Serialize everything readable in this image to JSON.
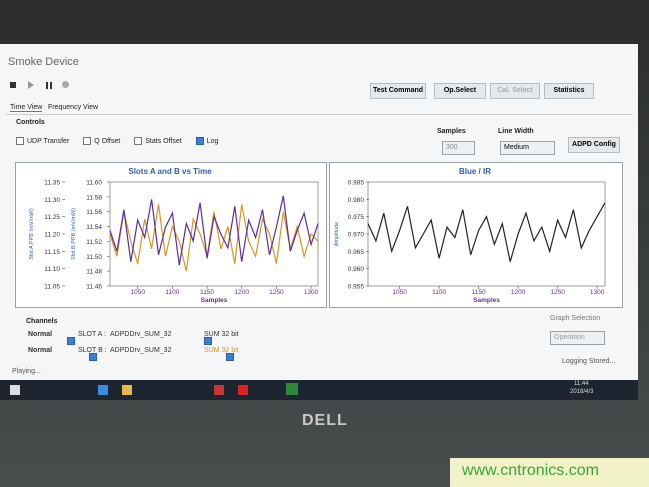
{
  "window": {
    "title": "Smoke Device",
    "buttons": [
      "Test Command",
      "Op.Select",
      "Cal. Select",
      "Statistics"
    ],
    "tabs": [
      "Time View",
      "Frequency View"
    ]
  },
  "controls": {
    "title": "Controls",
    "checkboxes": [
      {
        "label": "UDP Transfer",
        "checked": false
      },
      {
        "label": "Q Offset",
        "checked": false
      },
      {
        "label": "Stats Offset",
        "checked": false
      },
      {
        "label": "Log",
        "checked": true
      }
    ],
    "samples_label": "Samples",
    "samples_value": 300,
    "line_width_label": "Line Width",
    "line_width_value": "Medium",
    "config_button": "ADPD Config"
  },
  "chart_data": [
    {
      "type": "line",
      "title": "Slots A and B vs Time",
      "xlabel": "Samples",
      "ylabel": "Slot A PPB (mV/mW)",
      "y2label": "Slot B PPB (mV/mW)",
      "x": [
        1010,
        1020,
        1030,
        1040,
        1050,
        1060,
        1070,
        1080,
        1090,
        1100,
        1110,
        1120,
        1130,
        1140,
        1150,
        1160,
        1170,
        1180,
        1190,
        1200,
        1210,
        1220,
        1230,
        1240,
        1250,
        1260,
        1270,
        1280,
        1290,
        1300,
        1310
      ],
      "xlim": [
        1010,
        1310
      ],
      "xticks": [
        1050,
        1100,
        1150,
        1200,
        1250,
        1300
      ],
      "ylim": [
        11.05,
        11.35
      ],
      "yticks": [
        11.05,
        {
          "value": 11.1,
          "label": "11.10"
        },
        11.15,
        {
          "value": 11.2,
          "label": "11.20"
        },
        11.25,
        {
          "value": 11.3,
          "label": "11.30"
        },
        11.35
      ],
      "y2lim": [
        11.46,
        11.6
      ],
      "y2ticks": [
        11.46,
        11.48,
        {
          "value": 11.5,
          "label": "11.50"
        },
        11.52,
        11.54,
        11.56,
        11.58,
        {
          "value": 11.6,
          "label": "11.60"
        }
      ],
      "series": [
        {
          "color": "#d9961f",
          "axis": "y2",
          "values": [
            11.53,
            11.5,
            11.56,
            11.52,
            11.49,
            11.55,
            11.51,
            11.57,
            11.5,
            11.54,
            11.52,
            11.48,
            11.55,
            11.53,
            11.5,
            11.56,
            11.51,
            11.54,
            11.49,
            11.57,
            11.52,
            11.5,
            11.55,
            11.53,
            11.49,
            11.56,
            11.51,
            11.54,
            11.5,
            11.53,
            11.52
          ]
        },
        {
          "color": "#5a2ca0",
          "values": [
            11.21,
            11.15,
            11.27,
            11.12,
            11.24,
            11.19,
            11.3,
            11.14,
            11.22,
            11.26,
            11.11,
            11.23,
            11.18,
            11.29,
            11.13,
            11.25,
            11.2,
            11.16,
            11.28,
            11.12,
            11.24,
            11.19,
            11.27,
            11.14,
            11.22,
            11.31,
            11.15,
            11.21,
            11.26,
            11.17,
            11.23
          ]
        }
      ]
    },
    {
      "type": "line",
      "title": "Blue / IR",
      "xlabel": "Samples",
      "ylabel": "Amplitude",
      "x": [
        1010,
        1020,
        1030,
        1040,
        1050,
        1060,
        1070,
        1080,
        1090,
        1100,
        1110,
        1120,
        1130,
        1140,
        1150,
        1160,
        1170,
        1180,
        1190,
        1200,
        1210,
        1220,
        1230,
        1240,
        1250,
        1260,
        1270,
        1280,
        1290,
        1300,
        1310
      ],
      "xlim": [
        1010,
        1310
      ],
      "xticks": [
        1050,
        1100,
        1150,
        1200,
        1250,
        1300
      ],
      "ylim": [
        0.955,
        0.985
      ],
      "yticks": [
        0.955,
        {
          "value": 0.96,
          "label": "0.960"
        },
        0.965,
        {
          "value": 0.97,
          "label": "0.970"
        },
        0.975,
        {
          "value": 0.98,
          "label": "0.980"
        },
        0.985
      ],
      "series": [
        {
          "color": "#222222",
          "values": [
            0.973,
            0.968,
            0.976,
            0.965,
            0.971,
            0.978,
            0.966,
            0.97,
            0.974,
            0.963,
            0.972,
            0.969,
            0.977,
            0.964,
            0.971,
            0.975,
            0.967,
            0.973,
            0.962,
            0.97,
            0.976,
            0.968,
            0.972,
            0.965,
            0.974,
            0.969,
            0.977,
            0.966,
            0.971,
            0.975,
            0.979
          ]
        }
      ]
    }
  ],
  "channels": {
    "title": "Channels",
    "rows": [
      [
        "Normal",
        "SLOT A :",
        "ADPDDrv_SUM_32",
        "SUM 32 bit"
      ],
      [
        "Normal",
        "SLOT B :",
        "ADPDDrv_SUM_32",
        "SUM 32 bit"
      ]
    ],
    "graph_selection_label": "Graph Selection",
    "graph_selection_value": "Operation"
  },
  "status": {
    "left": "Playing...",
    "right": "Logging Stored..."
  },
  "taskbar": {
    "time": "11:44",
    "date": "2018/4/3"
  },
  "bezel": {
    "logo": "DELL"
  },
  "watermark": "www.cntronics.com"
}
